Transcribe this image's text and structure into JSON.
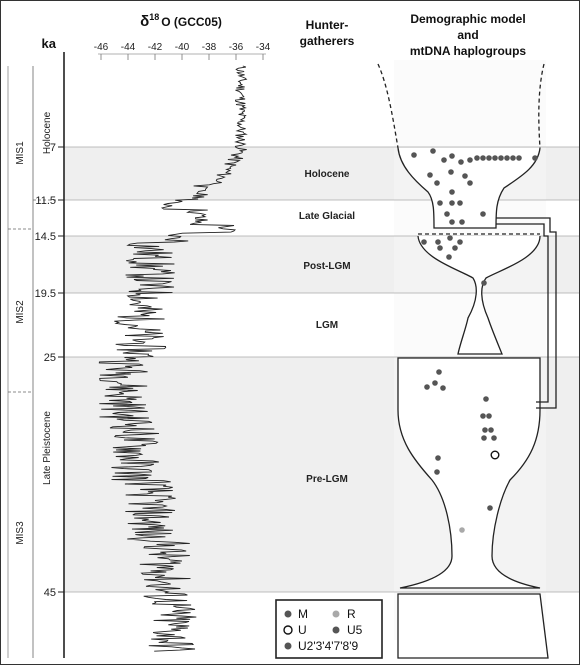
{
  "header": {
    "ka_label": "ka",
    "delta_symbol": "δ",
    "delta_sup": "18",
    "delta_rest": "O (GCC05)",
    "hg_title_line1": "Hunter-",
    "hg_title_line2": "gatherers",
    "dm_title_line1": "Demographic model",
    "dm_title_line2": "and",
    "dm_title_line3": "mtDNA haplogroups"
  },
  "mis_labels": [
    "MIS1",
    "MIS2",
    "MIS3"
  ],
  "epoch_labels": [
    "Holocene",
    "Late Pleistocene"
  ],
  "ka_ticks": [
    {
      "label": "7",
      "value": 7
    },
    {
      "label": "11.5",
      "value": 11.5
    },
    {
      "label": "14.5",
      "value": 14.5
    },
    {
      "label": "19.5",
      "value": 19.5
    },
    {
      "label": "25",
      "value": 25
    },
    {
      "label": "45",
      "value": 45
    }
  ],
  "d18o_ticks": [
    "-46",
    "-44",
    "-42",
    "-40",
    "-38",
    "-36",
    "-34"
  ],
  "periods": [
    "Holocene",
    "Late Glacial",
    "Post-LGM",
    "LGM",
    "Pre-LGM"
  ],
  "legend": {
    "items": [
      {
        "label": "M",
        "symbol": "dark-dot"
      },
      {
        "label": "R",
        "symbol": "light-dot"
      },
      {
        "label": "U",
        "symbol": "open-circle"
      },
      {
        "label": "U5",
        "symbol": "dark-dot"
      },
      {
        "label": "U2'3'4'7'8'9",
        "symbol": "dark-dot"
      }
    ]
  },
  "colors": {
    "band": "#efefef",
    "line": "#222222",
    "dot": "#555555",
    "dot_light": "#a9a9a9"
  }
}
